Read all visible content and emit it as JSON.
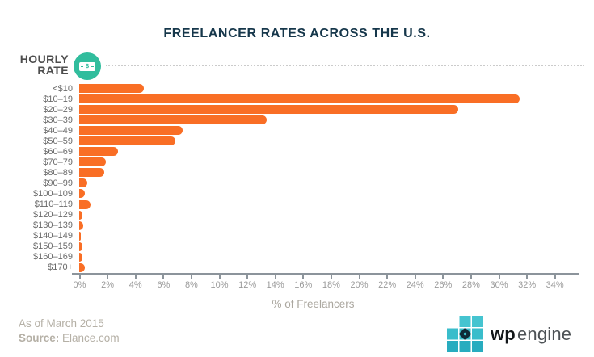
{
  "title": "FREELANCER RATES ACROSS THE U.S.",
  "y_axis_header": {
    "line1": "HOURLY",
    "line2": "RATE"
  },
  "icons": {
    "hourly_rate": "money-bill",
    "logo": "wpengine-grid"
  },
  "chart_data": {
    "type": "bar",
    "orientation": "horizontal",
    "title": "FREELANCER RATES ACROSS THE U.S.",
    "categories": [
      "<$10",
      "$10–19",
      "$20–29",
      "$30–39",
      "$40–49",
      "$50–59",
      "$60–69",
      "$70–79",
      "$80–89",
      "$90–99",
      "$100–109",
      "$110–119",
      "$120–129",
      "$130–139",
      "$140–149",
      "$150–159",
      "$160–169",
      "$170+"
    ],
    "values": [
      4.6,
      31.5,
      27.1,
      13.4,
      7.4,
      6.9,
      2.8,
      1.9,
      1.8,
      0.6,
      0.4,
      0.8,
      0.2,
      0.3,
      0.1,
      0.2,
      0.25,
      0.4
    ],
    "xlabel": "% of Freelancers",
    "ylabel": "HOURLY RATE",
    "x_ticks": [
      "0%",
      "2%",
      "4%",
      "6%",
      "8%",
      "10%",
      "12%",
      "14%",
      "16%",
      "18%",
      "20%",
      "22%",
      "24%",
      "26%",
      "28%",
      "30%",
      "32%",
      "34%"
    ],
    "xlim": [
      0,
      34
    ],
    "grid": false,
    "legend": false,
    "bar_color": "#F96E25"
  },
  "footer": {
    "as_of": "As of March 2015",
    "source_label": "Source:",
    "source_value": "Elance.com"
  },
  "logo": {
    "brand_bold": "wp",
    "brand_light": "engine"
  },
  "colors": {
    "title": "#16374B",
    "bar": "#F96E25",
    "accent_teal": "#31BD9D",
    "logo_teal": "#39BDCB",
    "axis": "#8c949b"
  }
}
